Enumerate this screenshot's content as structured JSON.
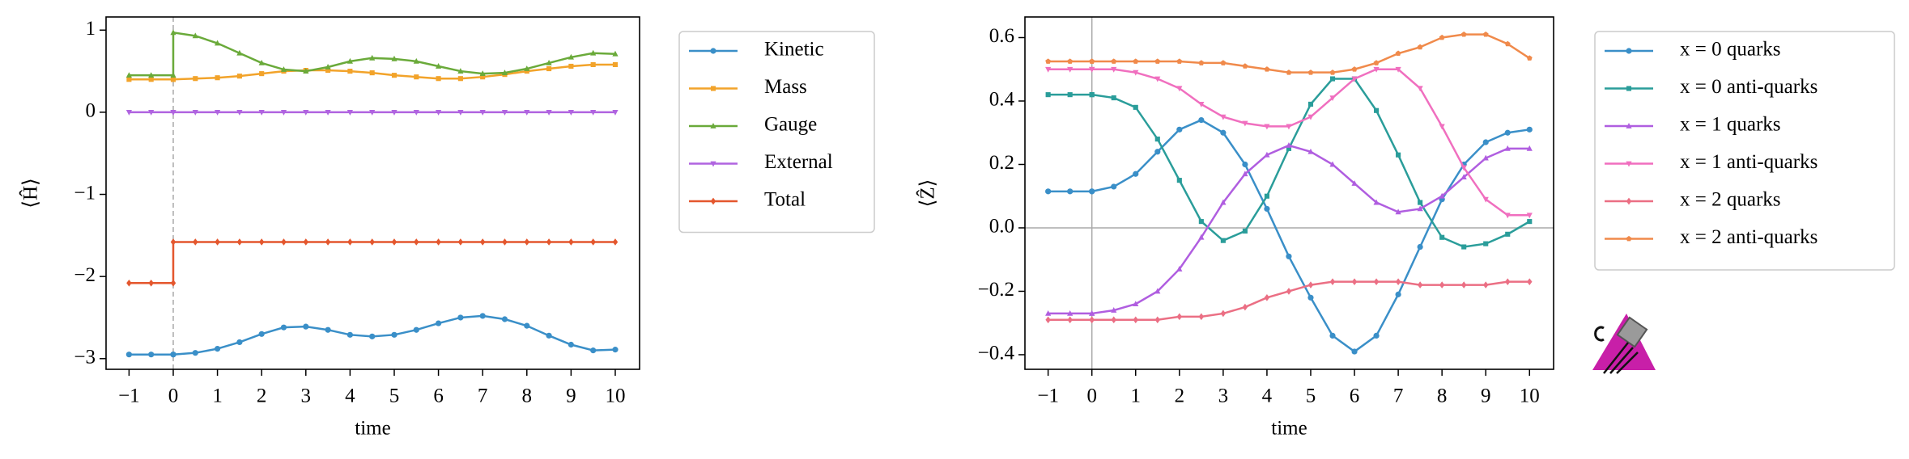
{
  "chart_data": [
    {
      "type": "line",
      "ylabel": "⟨Ĥ⟩",
      "xlabel": "time",
      "legend": "outside upper left",
      "xlim": [
        -1.52,
        10.55
      ],
      "ylim": [
        -3.13,
        1.16
      ],
      "xticks": [
        {
          "value": -1,
          "label": "−1"
        },
        0,
        1,
        2,
        3,
        4,
        5,
        6,
        7,
        8,
        9,
        10
      ],
      "yticks": [
        {
          "value": -3,
          "label": "−3"
        },
        {
          "value": -2,
          "label": "−2"
        },
        {
          "value": -1,
          "label": "−1"
        },
        0,
        1
      ],
      "vlines": [
        0
      ],
      "vline_style": "dashed",
      "hlines": [],
      "x": [
        -1,
        -0.5,
        0,
        0,
        0.5,
        1,
        1.5,
        2,
        2.5,
        3,
        3.5,
        4,
        4.5,
        5,
        5.5,
        6,
        6.5,
        7,
        7.5,
        8,
        8.5,
        9,
        9.5,
        10
      ],
      "series": [
        {
          "name": "Kinetic",
          "color": "#3a8fc8",
          "marker": "circle",
          "values": [
            -2.95,
            -2.95,
            -2.95,
            -2.95,
            -2.93,
            -2.88,
            -2.8,
            -2.7,
            -2.62,
            -2.61,
            -2.65,
            -2.71,
            -2.73,
            -2.71,
            -2.65,
            -2.57,
            -2.5,
            -2.48,
            -2.52,
            -2.6,
            -2.72,
            -2.83,
            -2.9,
            -2.89
          ]
        },
        {
          "name": "Mass",
          "color": "#f2a32a",
          "marker": "square",
          "values": [
            0.4,
            0.4,
            0.4,
            0.4,
            0.41,
            0.42,
            0.44,
            0.47,
            0.5,
            0.51,
            0.51,
            0.5,
            0.48,
            0.45,
            0.43,
            0.41,
            0.41,
            0.43,
            0.46,
            0.5,
            0.53,
            0.56,
            0.58,
            0.58
          ]
        },
        {
          "name": "Gauge",
          "color": "#6aaa3a",
          "marker": "triangle",
          "values": [
            0.45,
            0.45,
            0.45,
            0.97,
            0.93,
            0.84,
            0.72,
            0.6,
            0.52,
            0.5,
            0.55,
            0.62,
            0.66,
            0.65,
            0.62,
            0.56,
            0.5,
            0.47,
            0.48,
            0.53,
            0.6,
            0.67,
            0.72,
            0.71
          ]
        },
        {
          "name": "External",
          "color": "#b064e0",
          "marker": "triangle-down",
          "values": [
            0,
            0,
            0,
            0,
            0,
            0,
            0,
            0,
            0,
            0,
            0,
            0,
            0,
            0,
            0,
            0,
            0,
            0,
            0,
            0,
            0,
            0,
            0,
            0
          ]
        },
        {
          "name": "Total",
          "color": "#e4572e",
          "marker": "diamond",
          "values": [
            -2.08,
            -2.08,
            -2.08,
            -1.58,
            -1.58,
            -1.58,
            -1.58,
            -1.58,
            -1.58,
            -1.58,
            -1.58,
            -1.58,
            -1.58,
            -1.58,
            -1.58,
            -1.58,
            -1.58,
            -1.58,
            -1.58,
            -1.58,
            -1.58,
            -1.58,
            -1.58,
            -1.58
          ]
        }
      ]
    },
    {
      "type": "line",
      "ylabel": "⟨Ẑ⟩",
      "xlabel": "time",
      "legend": "outside upper left",
      "xlim": [
        -1.53,
        10.55
      ],
      "ylim": [
        -0.446,
        0.665
      ],
      "xticks": [
        {
          "value": -1,
          "label": "−1"
        },
        0,
        1,
        2,
        3,
        4,
        5,
        6,
        7,
        8,
        9,
        10
      ],
      "yticks": [
        {
          "value": -0.4,
          "label": "−0.4"
        },
        {
          "value": -0.2,
          "label": "−0.2"
        },
        {
          "value": 0,
          "label": "0.0"
        },
        0.2,
        0.4,
        0.6
      ],
      "vlines": [
        0
      ],
      "vline_style": "solid",
      "hlines": [
        0
      ],
      "x": [
        -1,
        -0.5,
        0,
        0,
        0.5,
        1,
        1.5,
        2,
        2.5,
        3,
        3.5,
        4,
        4.5,
        5,
        5.5,
        6,
        6.5,
        7,
        7.5,
        8,
        8.5,
        9,
        9.5,
        10
      ],
      "series": [
        {
          "name": "x = 0 quarks",
          "color": "#3a8fc8",
          "marker": "circle",
          "values": [
            0.115,
            0.115,
            0.115,
            0.115,
            0.13,
            0.17,
            0.24,
            0.31,
            0.34,
            0.3,
            0.2,
            0.06,
            -0.09,
            -0.22,
            -0.34,
            -0.39,
            -0.34,
            -0.21,
            -0.06,
            0.09,
            0.2,
            0.27,
            0.3,
            0.31
          ]
        },
        {
          "name": "x = 0 anti-quarks",
          "color": "#2a9d9a",
          "marker": "square",
          "values": [
            0.42,
            0.42,
            0.42,
            0.42,
            0.41,
            0.38,
            0.28,
            0.15,
            0.02,
            -0.04,
            -0.01,
            0.1,
            0.25,
            0.39,
            0.47,
            0.47,
            0.37,
            0.23,
            0.08,
            -0.03,
            -0.06,
            -0.05,
            -0.02,
            0.02
          ]
        },
        {
          "name": "x = 1 quarks",
          "color": "#b05ee0",
          "marker": "triangle",
          "values": [
            -0.27,
            -0.27,
            -0.27,
            -0.27,
            -0.26,
            -0.24,
            -0.2,
            -0.13,
            -0.03,
            0.08,
            0.17,
            0.23,
            0.26,
            0.24,
            0.2,
            0.14,
            0.08,
            0.05,
            0.06,
            0.1,
            0.16,
            0.22,
            0.25,
            0.25
          ]
        },
        {
          "name": "x = 1 anti-quarks",
          "color": "#f06fbf",
          "marker": "triangle-down",
          "values": [
            0.5,
            0.5,
            0.5,
            0.5,
            0.5,
            0.49,
            0.47,
            0.44,
            0.39,
            0.35,
            0.33,
            0.32,
            0.32,
            0.35,
            0.41,
            0.47,
            0.5,
            0.5,
            0.44,
            0.32,
            0.19,
            0.09,
            0.04,
            0.04
          ]
        },
        {
          "name": "x = 2 quarks",
          "color": "#eb6f84",
          "marker": "diamond",
          "values": [
            -0.29,
            -0.29,
            -0.29,
            -0.29,
            -0.29,
            -0.29,
            -0.29,
            -0.28,
            -0.28,
            -0.27,
            -0.25,
            -0.22,
            -0.2,
            -0.18,
            -0.17,
            -0.17,
            -0.17,
            -0.17,
            -0.18,
            -0.18,
            -0.18,
            -0.18,
            -0.17,
            -0.17
          ]
        },
        {
          "name": "x = 2 anti-quarks",
          "color": "#f08a4b",
          "marker": "pentagon",
          "values": [
            0.525,
            0.525,
            0.525,
            0.525,
            0.525,
            0.525,
            0.525,
            0.525,
            0.52,
            0.52,
            0.51,
            0.5,
            0.49,
            0.49,
            0.49,
            0.5,
            0.52,
            0.55,
            0.57,
            0.6,
            0.61,
            0.61,
            0.58,
            0.535
          ]
        }
      ]
    }
  ]
}
